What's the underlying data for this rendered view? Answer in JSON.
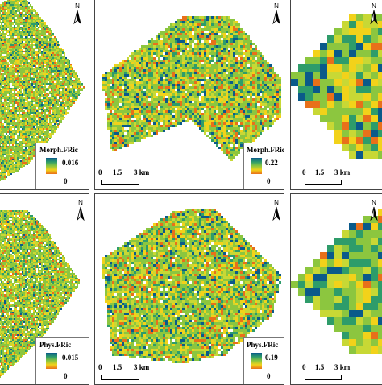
{
  "panels": [
    {
      "legend_title": "Morph.FRic",
      "legend_max": "0.016",
      "legend_min": "0",
      "north": "N"
    },
    {
      "legend_title": "Morph.FRic",
      "legend_max": "0.22",
      "legend_min": "0",
      "north": "N",
      "scale_labels": [
        "0",
        "1.5",
        "3 km"
      ]
    },
    {
      "north": "N",
      "scale_labels": [
        "0",
        "1.5",
        "3 km"
      ]
    },
    {
      "legend_title": "Phys.FRic",
      "legend_max": "0.015",
      "legend_min": "0",
      "north": "N"
    },
    {
      "legend_title": "Phys.FRic",
      "legend_max": "0.19",
      "legend_min": "0",
      "north": "N",
      "scale_labels": [
        "0",
        "1.5",
        "3 km"
      ]
    },
    {
      "north": "N",
      "scale_labels": [
        "0",
        "1.5",
        "3 km"
      ]
    }
  ],
  "palette": [
    "#0a5a8a",
    "#2e9c6a",
    "#8cc63f",
    "#c8d835",
    "#f2d21a",
    "#e8701a"
  ]
}
